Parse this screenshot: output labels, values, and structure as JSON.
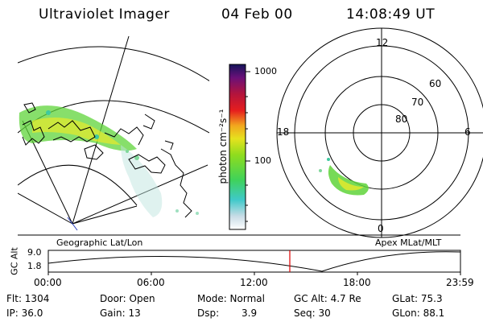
{
  "header": {
    "instrument": "Ultraviolet Imager",
    "date": "04 Feb 00",
    "time": "14:08:49 UT"
  },
  "colorbar": {
    "unit_label": "photon cm⁻²s⁻¹",
    "ticks": [
      "1000",
      "100"
    ]
  },
  "panels": {
    "left_caption": "Geographic Lat/Lon",
    "right_caption": "Apex MLat/MLT"
  },
  "polar_plot": {
    "mlt_labels": {
      "top": "12",
      "left": "18",
      "right": "6",
      "bottom": "0"
    },
    "lat_labels": [
      "60",
      "70",
      "80"
    ]
  },
  "timeline": {
    "ylabel": "GC Alt",
    "y_ticks": [
      "9.0",
      "1.8"
    ],
    "x_ticks": [
      "00:00",
      "06:00",
      "12:00",
      "18:00",
      "23:59"
    ]
  },
  "status": {
    "flt": "Flt: 1304",
    "ip": "IP: 36.0",
    "door": "Door: Open",
    "gain": "Gain: 13",
    "mode": "Mode: Normal",
    "dsp_label": "Dsp:",
    "dsp_value": "3.9",
    "gcalt": "GC Alt: 4.7 Re",
    "seq": "Seq: 30",
    "glat": "GLat: 75.3",
    "glon": "GLon: 88.1"
  },
  "colors": {
    "marker": "#e00000",
    "aurora_green": "#5fd43a",
    "aurora_yellow": "#e8ea2a"
  }
}
